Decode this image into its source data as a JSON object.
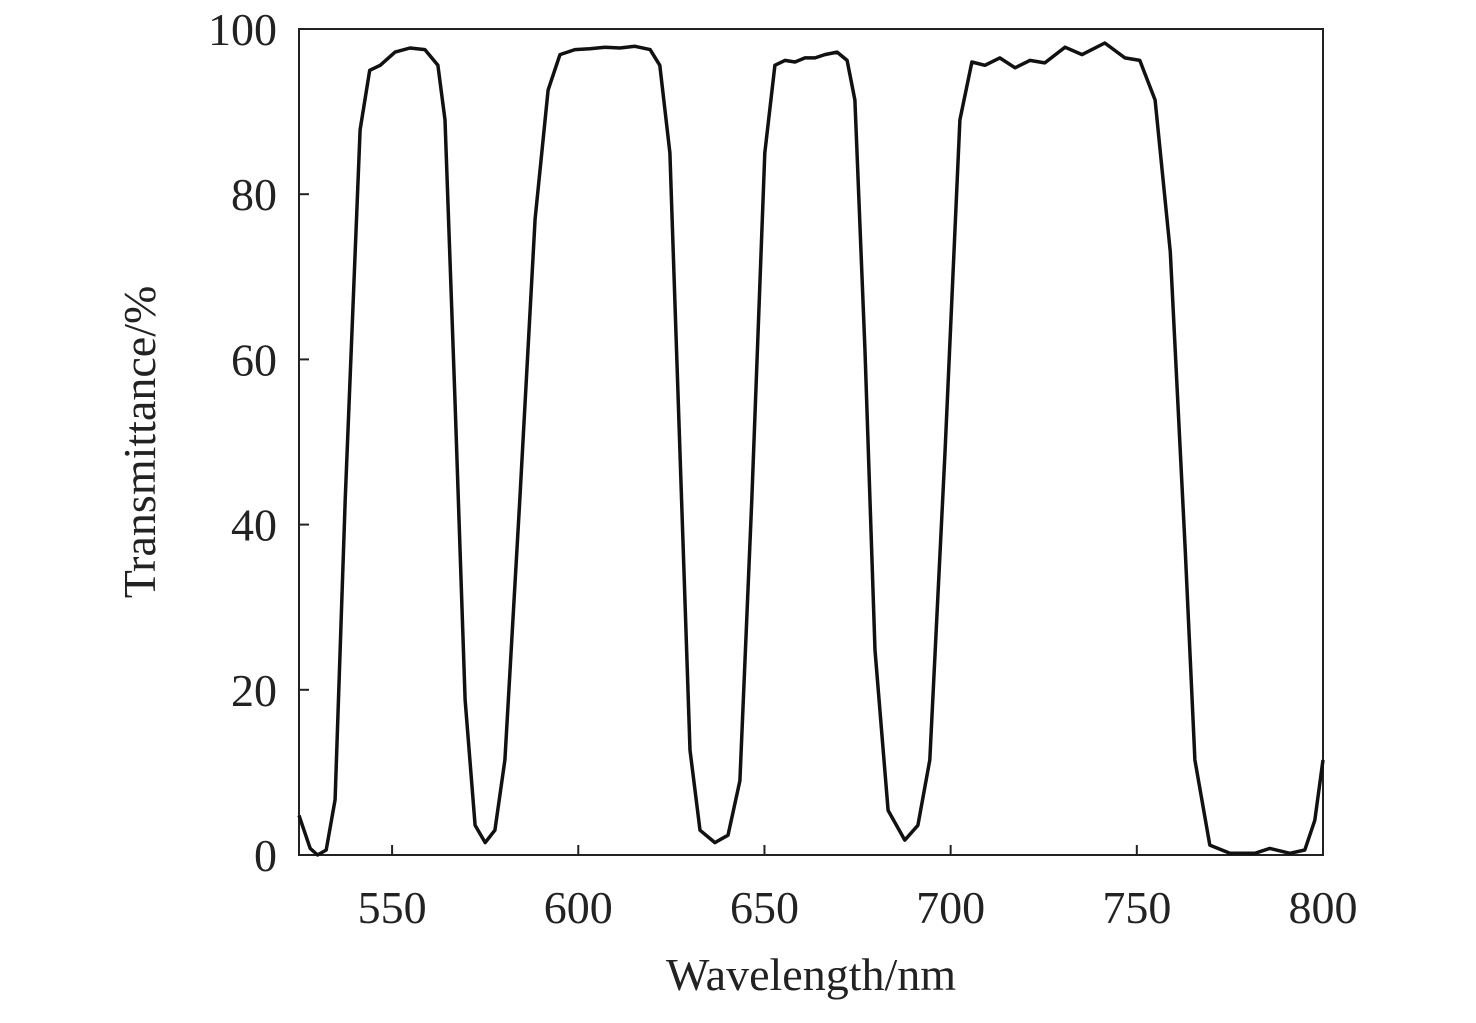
{
  "chart_data": {
    "type": "line",
    "x_label": "Wavelength/nm",
    "y_label": "Transmittance/%",
    "x": [
      525,
      528,
      530,
      532.3,
      534.7,
      537.4,
      541.4,
      544,
      546.8,
      550.8,
      554.8,
      558.8,
      562.3,
      564.2,
      566.9,
      569.6,
      572.3,
      575,
      577.6,
      580.3,
      584.3,
      588.4,
      591.9,
      595.1,
      599.1,
      603.1,
      607.2,
      611.2,
      615.2,
      619.3,
      621.9,
      624.6,
      627.3,
      630,
      632.7,
      636.7,
      640.2,
      643.4,
      646.6,
      650.1,
      652.8,
      655.5,
      658.2,
      660.9,
      663.6,
      666.2,
      669.5,
      672.2,
      674.3,
      677,
      679.7,
      683.2,
      687.7,
      691.2,
      694.4,
      698.5,
      702.5,
      705.7,
      709.2,
      713.2,
      717.3,
      721.3,
      725.3,
      730.7,
      735.3,
      741.4,
      746.8,
      750.8,
      754.9,
      759,
      763,
      765.6,
      769.6,
      775,
      781.7,
      785.7,
      791.1,
      795.1,
      797.8,
      800
    ],
    "series": [
      {
        "color": "#111111",
        "values": [
          4.8,
          0.8,
          0,
          0.6,
          6.7,
          43,
          87.8,
          95,
          95.6,
          97.2,
          97.7,
          97.5,
          95.6,
          89,
          55,
          18.8,
          3.6,
          1.5,
          3,
          11.5,
          43,
          77,
          92.6,
          96.9,
          97.5,
          97.6,
          97.8,
          97.7,
          97.9,
          97.5,
          95.6,
          85,
          49,
          12.7,
          3,
          1.5,
          2.4,
          9,
          43,
          85,
          95.6,
          96.2,
          96,
          96.5,
          96.5,
          96.9,
          97.2,
          96.2,
          91.4,
          61,
          24.8,
          5.4,
          1.8,
          3.6,
          11.5,
          49,
          89,
          96,
          95.6,
          96.5,
          95.3,
          96.2,
          95.9,
          97.8,
          96.9,
          98.3,
          96.5,
          96.2,
          91.4,
          73,
          37,
          11.5,
          1.2,
          0.2,
          0.2,
          0.8,
          0.2,
          0.6,
          4.2,
          11.5
        ]
      }
    ],
    "xlim": [
      525,
      800
    ],
    "xticks": [
      550,
      600,
      650,
      700,
      750,
      800
    ],
    "ylim": [
      0,
      100
    ],
    "yticks": [
      0,
      20,
      40,
      60,
      80,
      100
    ]
  }
}
